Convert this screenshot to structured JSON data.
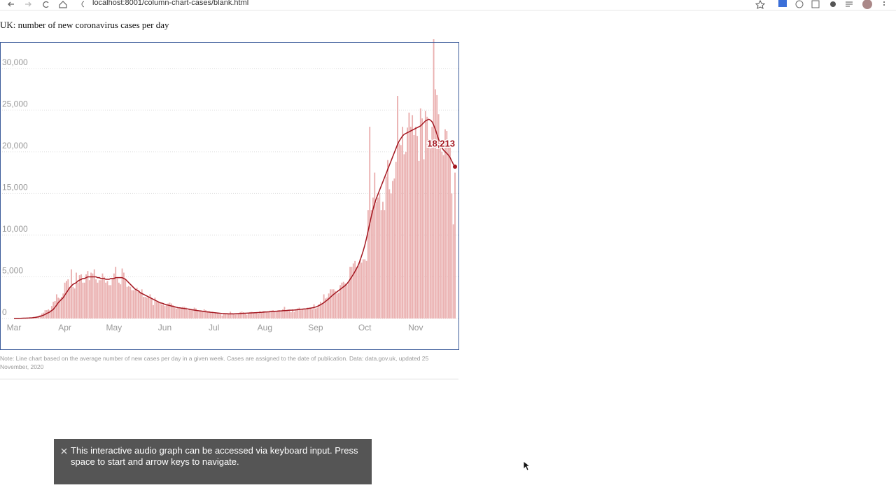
{
  "browser": {
    "url": "localhost:8001/column-chart-cases/blank.html"
  },
  "chart_data": {
    "type": "bar",
    "title": "UK: number of new coronavirus cases per day",
    "categories": [
      "Mar",
      null,
      null,
      null,
      null,
      null,
      null,
      null,
      null,
      null,
      null,
      null,
      null,
      null,
      null,
      null,
      null,
      null,
      null,
      null,
      null,
      null,
      null,
      null,
      null,
      null,
      null,
      null,
      null,
      null,
      null,
      "Apr",
      null,
      null,
      null,
      null,
      null,
      null,
      null,
      null,
      null,
      null,
      null,
      null,
      null,
      null,
      null,
      null,
      null,
      null,
      null,
      null,
      null,
      null,
      null,
      null,
      null,
      null,
      null,
      null,
      null,
      "May",
      null,
      null,
      null,
      null,
      null,
      null,
      null,
      null,
      null,
      null,
      null,
      null,
      null,
      null,
      null,
      null,
      null,
      null,
      null,
      null,
      null,
      null,
      null,
      null,
      null,
      null,
      null,
      null,
      null,
      null,
      "Jun",
      null,
      null,
      null,
      null,
      null,
      null,
      null,
      null,
      null,
      null,
      null,
      null,
      null,
      null,
      null,
      null,
      null,
      null,
      null,
      null,
      null,
      null,
      null,
      null,
      null,
      null,
      null,
      null,
      null,
      "Jul",
      null,
      null,
      null,
      null,
      null,
      null,
      null,
      null,
      null,
      null,
      null,
      null,
      null,
      null,
      null,
      null,
      null,
      null,
      null,
      null,
      null,
      null,
      null,
      null,
      null,
      null,
      null,
      null,
      null,
      null,
      "Aug",
      null,
      null,
      null,
      null,
      null,
      null,
      null,
      null,
      null,
      null,
      null,
      null,
      null,
      null,
      null,
      null,
      null,
      null,
      null,
      null,
      null,
      null,
      null,
      null,
      null,
      null,
      null,
      null,
      null,
      null,
      "Sep",
      null,
      null,
      null,
      null,
      null,
      null,
      null,
      null,
      null,
      null,
      null,
      null,
      null,
      null,
      null,
      null,
      null,
      null,
      null,
      null,
      null,
      null,
      null,
      null,
      null,
      null,
      null,
      null,
      null,
      "Oct",
      null,
      null,
      null,
      null,
      null,
      null,
      null,
      null,
      null,
      null,
      null,
      null,
      null,
      null,
      null,
      null,
      null,
      null,
      null,
      null,
      null,
      null,
      null,
      null,
      null,
      null,
      null,
      null,
      null,
      null,
      "Nov",
      null,
      null,
      null,
      null,
      null,
      null,
      null,
      null,
      null,
      null,
      null,
      null,
      null,
      null,
      null,
      null,
      null,
      null,
      null,
      null,
      null,
      null,
      null,
      null
    ],
    "series": [
      {
        "type": "bar",
        "color": "#eab0b0",
        "values": [
          0,
          0,
          10,
          20,
          30,
          50,
          60,
          50,
          70,
          60,
          80,
          130,
          200,
          150,
          250,
          300,
          400,
          600,
          700,
          1000,
          1000,
          1100,
          1000,
          1500,
          2000,
          2100,
          2900,
          2500,
          2400,
          2600,
          3000,
          4300,
          4500,
          4700,
          3700,
          5900,
          3800,
          3600,
          5500,
          4300,
          5200,
          5300,
          4300,
          4300,
          5300,
          5700,
          4600,
          5500,
          5400,
          5900,
          4700,
          4300,
          4600,
          4600,
          5400,
          5000,
          4300,
          4500,
          4000,
          4000,
          4800,
          5400,
          6200,
          4800,
          4300,
          4100,
          6000,
          5500,
          4600,
          3800,
          3900,
          3800,
          3400,
          3400,
          3400,
          3700,
          3400,
          3100,
          3500,
          2600,
          2600,
          2500,
          2600,
          2900,
          2400,
          1600,
          2500,
          2000,
          2000,
          1900,
          1700,
          1700,
          1500,
          1600,
          1800,
          1900,
          1800,
          1600,
          1500,
          1200,
          1300,
          1200,
          1300,
          1400,
          1400,
          1300,
          1000,
          1200,
          1100,
          1100,
          1300,
          1200,
          1000,
          950,
          900,
          800,
          1100,
          1000,
          890,
          900,
          800,
          815,
          600,
          700,
          600,
          550,
          500,
          350,
          580,
          630,
          640,
          560,
          820,
          650,
          530,
          480,
          540,
          620,
          770,
          830,
          750,
          600,
          450,
          580,
          770,
          800,
          680,
          700,
          740,
          580,
          900,
          800,
          900,
          900,
          840,
          750,
          940,
          950,
          1000,
          900,
          800,
          1000,
          1000,
          900,
          1100,
          1400,
          1000,
          1000,
          1000,
          750,
          1100,
          800,
          1000,
          1200,
          1300,
          1000,
          1100,
          1200,
          1100,
          1300,
          1300,
          1300,
          1100,
          1700,
          1200,
          1300,
          1700,
          2000,
          1800,
          2900,
          2400,
          2500,
          3000,
          3500,
          3500,
          3500,
          3300,
          3000,
          3100,
          4000,
          4300,
          4400,
          4200,
          4000,
          4400,
          6200,
          6200,
          6600,
          6900,
          6200,
          6300,
          7100,
          6700,
          7100,
          7100,
          6900,
          13000,
          23000,
          13000,
          14500,
          17500,
          14000,
          14500,
          15000,
          13000,
          14000,
          13000,
          17000,
          19000,
          15500,
          15000,
          16500,
          16800,
          18800,
          26700,
          21000,
          20800,
          23000,
          19700,
          20000,
          22900,
          24700,
          23000,
          24400,
          22000,
          23000,
          21900,
          18900,
          25200,
          24000,
          19100,
          24900,
          24200,
          21500,
          20400,
          23000,
          33500,
          27500,
          26800,
          24500,
          21400,
          20000,
          19600,
          22700,
          22500,
          21000,
          20700,
          15000,
          11300,
          17500
        ]
      },
      {
        "type": "line",
        "color": "#a3161f",
        "values": [
          0,
          0,
          10,
          15,
          20,
          30,
          40,
          45,
          55,
          60,
          70,
          80,
          110,
          140,
          170,
          210,
          260,
          330,
          400,
          500,
          600,
          700,
          800,
          950,
          1100,
          1350,
          1600,
          1900,
          2100,
          2300,
          2500,
          2800,
          3100,
          3400,
          3700,
          3900,
          4100,
          4200,
          4300,
          4500,
          4600,
          4700,
          4800,
          4800,
          4900,
          5000,
          5000,
          5000,
          5000,
          5000,
          5000,
          4900,
          4900,
          4800,
          4800,
          4800,
          4700,
          4700,
          4700,
          4800,
          4800,
          4800,
          4900,
          4900,
          4900,
          4900,
          4900,
          4800,
          4700,
          4500,
          4300,
          4100,
          3900,
          3700,
          3500,
          3400,
          3300,
          3100,
          3000,
          2900,
          2800,
          2700,
          2600,
          2500,
          2400,
          2300,
          2200,
          2100,
          2000,
          1900,
          1850,
          1800,
          1700,
          1650,
          1600,
          1550,
          1500,
          1450,
          1400,
          1350,
          1300,
          1280,
          1250,
          1220,
          1200,
          1170,
          1140,
          1100,
          1070,
          1040,
          1010,
          980,
          950,
          920,
          900,
          870,
          840,
          810,
          790,
          770,
          750,
          720,
          700,
          680,
          660,
          640,
          620,
          600,
          590,
          580,
          570,
          560,
          560,
          560,
          560,
          570,
          580,
          590,
          600,
          610,
          620,
          630,
          640,
          650,
          660,
          670,
          680,
          690,
          700,
          710,
          720,
          740,
          760,
          780,
          790,
          800,
          810,
          830,
          850,
          860,
          870,
          880,
          900,
          910,
          930,
          950,
          960,
          980,
          1000,
          1000,
          1010,
          1020,
          1040,
          1060,
          1080,
          1100,
          1120,
          1140,
          1160,
          1190,
          1220,
          1250,
          1280,
          1320,
          1380,
          1450,
          1550,
          1650,
          1770,
          1900,
          2050,
          2200,
          2370,
          2550,
          2730,
          2900,
          3050,
          3200,
          3350,
          3500,
          3650,
          3800,
          3950,
          4150,
          4400,
          4700,
          5000,
          5300,
          5650,
          6000,
          6400,
          6900,
          7500,
          8100,
          8800,
          9600,
          10500,
          11400,
          12300,
          13100,
          13800,
          14400,
          14900,
          15400,
          15900,
          16400,
          16900,
          17400,
          17900,
          18400,
          18900,
          19400,
          19900,
          20400,
          20900,
          21300,
          21600,
          21900,
          22100,
          22200,
          22300,
          22400,
          22500,
          22600,
          22700,
          22800,
          22900,
          23000,
          23100,
          23300,
          23500,
          23700,
          23800,
          23900,
          23800,
          23600,
          23200,
          22700,
          22100,
          21500,
          21000,
          20500,
          20200,
          20000,
          19800,
          19600,
          19300,
          18900,
          18500,
          18213
        ],
        "value_labels": [
          null,
          null,
          null,
          null,
          null,
          null,
          null,
          null,
          null,
          null,
          null,
          null,
          null,
          null,
          null,
          null,
          null,
          null,
          null,
          null,
          null,
          null,
          null,
          null,
          null,
          null,
          null,
          null,
          null,
          null,
          null,
          null,
          null,
          null,
          null,
          null,
          null,
          null,
          null,
          null,
          null,
          null,
          null,
          null,
          null,
          null,
          null,
          null,
          null,
          null,
          null,
          null,
          null,
          null,
          null,
          null,
          null,
          null,
          null,
          null,
          null,
          null,
          null,
          null,
          null,
          null,
          null,
          null,
          null,
          null,
          null,
          null,
          null,
          null,
          null,
          null,
          null,
          null,
          null,
          null,
          null,
          null,
          null,
          null,
          null,
          null,
          null,
          null,
          null,
          null,
          null,
          null,
          null,
          null,
          null,
          null,
          null,
          null,
          null,
          null,
          null,
          null,
          null,
          null,
          null,
          null,
          null,
          null,
          null,
          null,
          null,
          null,
          null,
          null,
          null,
          null,
          null,
          null,
          null,
          null,
          null,
          null,
          null,
          null,
          null,
          null,
          null,
          null,
          null,
          null,
          null,
          null,
          null,
          null,
          null,
          null,
          null,
          null,
          null,
          null,
          null,
          null,
          null,
          null,
          null,
          null,
          null,
          null,
          null,
          null,
          null,
          null,
          null,
          null,
          null,
          null,
          null,
          null,
          null,
          null,
          null,
          null,
          null,
          null,
          null,
          null,
          null,
          null,
          null,
          null,
          null,
          null,
          null,
          null,
          null,
          null,
          null,
          null,
          null,
          null,
          null,
          null,
          null,
          null,
          null,
          null,
          null,
          null,
          null,
          null,
          null,
          null,
          null,
          null,
          null,
          null,
          null,
          null,
          null,
          null,
          null,
          null,
          null,
          null,
          null,
          null,
          null,
          null,
          null,
          null,
          null,
          null,
          null,
          null,
          null,
          null,
          null,
          null,
          null,
          null,
          null,
          null,
          null,
          null,
          null,
          null,
          null,
          null,
          null,
          null,
          null,
          null,
          null,
          null,
          null,
          null,
          null,
          null,
          null,
          null,
          null,
          null,
          null,
          null,
          null,
          null,
          null,
          null,
          null,
          null,
          null,
          null,
          null,
          null,
          null,
          null,
          null,
          null,
          null,
          null,
          null,
          null,
          null,
          null,
          null,
          null,
          null,
          null,
          null,
          "18,213"
        ]
      }
    ],
    "ylim": [
      0,
      33000
    ],
    "yticks": [
      0,
      {
        "value": 5000,
        "label": "5,000"
      },
      {
        "value": 10000,
        "label": "10,000"
      },
      {
        "value": 15000,
        "label": "15,000"
      },
      {
        "value": 20000,
        "label": "20,000"
      },
      {
        "value": 25000,
        "label": "25,000"
      },
      {
        "value": 30000,
        "label": "30,000"
      }
    ],
    "grid": true
  },
  "note": "Note: Line chart based on the average number of new cases per day in a given week. Cases are assigned to the date of publication. Data: data.gov.uk, updated 25 November, 2020",
  "toast": {
    "message": "This interactive audio graph can be accessed via keyboard input. Press space to start and arrow keys to navigate."
  }
}
